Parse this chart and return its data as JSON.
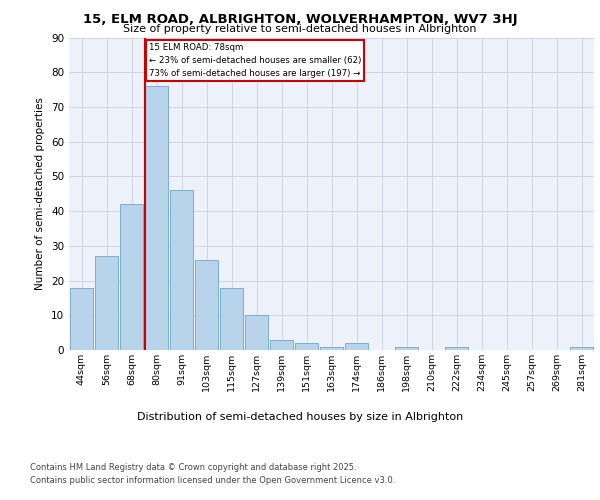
{
  "title1": "15, ELM ROAD, ALBRIGHTON, WOLVERHAMPTON, WV7 3HJ",
  "title2": "Size of property relative to semi-detached houses in Albrighton",
  "xlabel": "Distribution of semi-detached houses by size in Albrighton",
  "ylabel": "Number of semi-detached properties",
  "categories": [
    "44sqm",
    "56sqm",
    "68sqm",
    "80sqm",
    "91sqm",
    "103sqm",
    "115sqm",
    "127sqm",
    "139sqm",
    "151sqm",
    "163sqm",
    "174sqm",
    "186sqm",
    "198sqm",
    "210sqm",
    "222sqm",
    "234sqm",
    "245sqm",
    "257sqm",
    "269sqm",
    "281sqm"
  ],
  "values": [
    18,
    27,
    42,
    76,
    46,
    26,
    18,
    10,
    3,
    2,
    1,
    2,
    0,
    1,
    0,
    1,
    0,
    0,
    0,
    0,
    1
  ],
  "bar_color": "#b8d4ea",
  "bar_edge_color": "#7aaed0",
  "background_color": "#edf2fa",
  "grid_color": "#c8d0e0",
  "vline_x": 2.55,
  "vline_color": "#cc0000",
  "annotation_title": "15 ELM ROAD: 78sqm",
  "annotation_line1": "← 23% of semi-detached houses are smaller (62)",
  "annotation_line2": "73% of semi-detached houses are larger (197) →",
  "annotation_box_color": "#cc0000",
  "ylim": [
    0,
    90
  ],
  "yticks": [
    0,
    10,
    20,
    30,
    40,
    50,
    60,
    70,
    80,
    90
  ],
  "footer1": "Contains HM Land Registry data © Crown copyright and database right 2025.",
  "footer2": "Contains public sector information licensed under the Open Government Licence v3.0."
}
